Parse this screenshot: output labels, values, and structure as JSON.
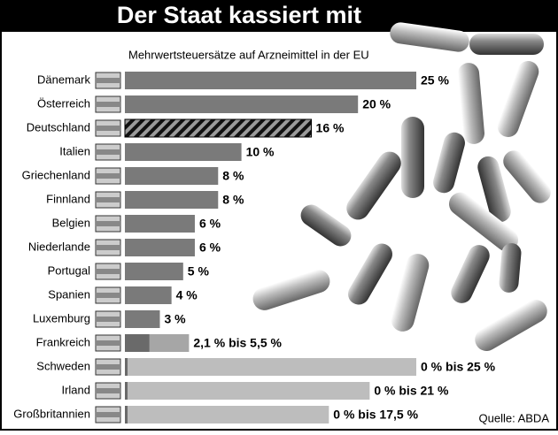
{
  "chart_data": {
    "type": "bar",
    "title": "Der Staat kassiert mit",
    "subtitle": "Mehrwertsteuersätze auf Arzneimittel in der EU",
    "source": "Quelle: ABDA",
    "categories": [
      "Dänemark",
      "Österreich",
      "Deutschland",
      "Italien",
      "Griechenland",
      "Finnland",
      "Belgien",
      "Niederlande",
      "Portugal",
      "Spanien",
      "Luxemburg",
      "Frankreich",
      "Schweden",
      "Irland",
      "Großbritannien"
    ],
    "values": [
      25,
      20,
      16,
      10,
      8,
      8,
      6,
      6,
      5,
      4,
      3,
      5.5,
      25,
      21,
      17.5
    ],
    "min_values": [
      null,
      null,
      null,
      null,
      null,
      null,
      null,
      null,
      null,
      null,
      null,
      2.1,
      0,
      0,
      0
    ],
    "value_labels": [
      "25 %",
      "20 %",
      "16 %",
      "10 %",
      "8 %",
      "8 %",
      "6 %",
      "6 %",
      "5 %",
      "4 %",
      "3 %",
      "2,1 % bis 5,5 %",
      "0 % bis 25 %",
      "0 % bis 21 %",
      "0 % bis 17,5 %"
    ],
    "colors": [
      "#7a7a7a",
      "#7a7a7a",
      "hatched",
      "#7a7a7a",
      "#7a7a7a",
      "#7a7a7a",
      "#7a7a7a",
      "#7a7a7a",
      "#7a7a7a",
      "#7a7a7a",
      "#7a7a7a",
      "#a6a6a6",
      "#bdbdbd",
      "#bdbdbd",
      "#bdbdbd"
    ],
    "min_color": "#6a6a6a"
  }
}
